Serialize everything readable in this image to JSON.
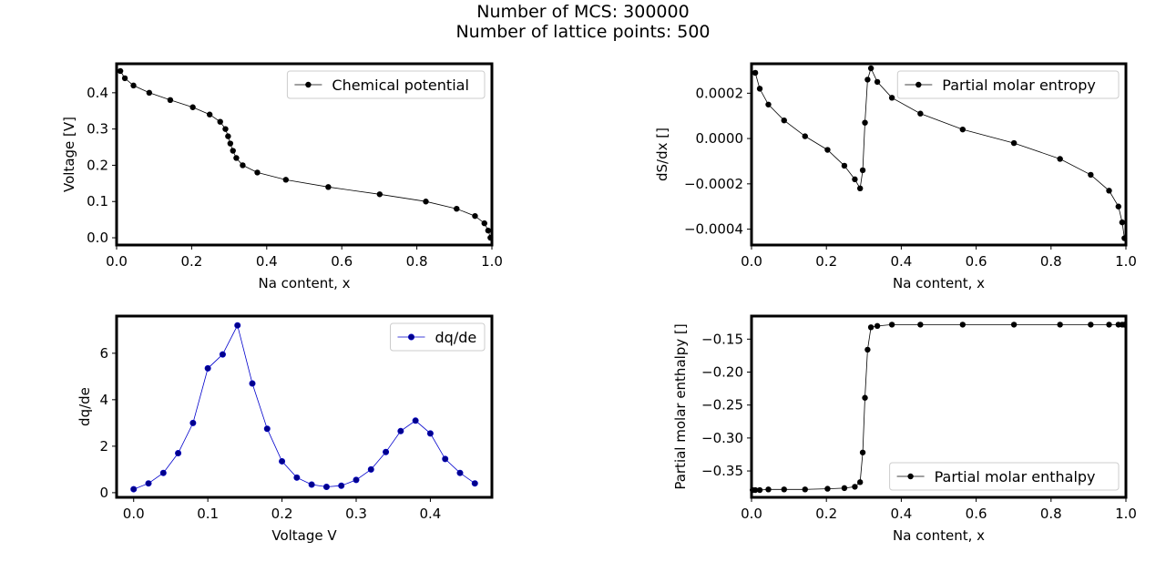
{
  "figure": {
    "title_line1": "Number of MCS: 300000",
    "title_line2": "Number of lattice points: 500"
  },
  "chart_data": [
    {
      "id": "voltage",
      "type": "line",
      "xlabel": "Na content, x",
      "ylabel": "Voltage [V]",
      "xlim": [
        0.0,
        1.0
      ],
      "ylim": [
        -0.02,
        0.48
      ],
      "xticks": [
        "0.0",
        "0.2",
        "0.4",
        "0.6",
        "0.8",
        "1.0"
      ],
      "yticks": [
        "0.0",
        "0.1",
        "0.2",
        "0.3",
        "0.4"
      ],
      "grid": false,
      "legend_position": "upper right",
      "series": [
        {
          "name": "Chemical potential",
          "color": "#000000",
          "x": [
            0.01,
            0.022,
            0.045,
            0.087,
            0.143,
            0.203,
            0.248,
            0.276,
            0.29,
            0.297,
            0.303,
            0.31,
            0.319,
            0.336,
            0.375,
            0.451,
            0.564,
            0.701,
            0.824,
            0.906,
            0.955,
            0.98,
            0.99,
            0.996
          ],
          "y": [
            0.46,
            0.44,
            0.42,
            0.4,
            0.38,
            0.36,
            0.34,
            0.32,
            0.3,
            0.28,
            0.26,
            0.24,
            0.22,
            0.2,
            0.18,
            0.16,
            0.14,
            0.12,
            0.1,
            0.08,
            0.06,
            0.04,
            0.02,
            0.0
          ]
        }
      ]
    },
    {
      "id": "entropy",
      "type": "line",
      "xlabel": "Na content, x",
      "ylabel": "dS/dx []",
      "xlim": [
        0.0,
        1.0
      ],
      "ylim": [
        -0.00047,
        0.00033
      ],
      "xticks": [
        "0.0",
        "0.2",
        "0.4",
        "0.6",
        "0.8",
        "1.0"
      ],
      "yticks": [
        "−0.0004",
        "−0.0002",
        "0.0000",
        "0.0002"
      ],
      "grid": false,
      "legend_position": "upper right",
      "series": [
        {
          "name": "Partial molar entropy",
          "color": "#000000",
          "x": [
            0.01,
            0.022,
            0.045,
            0.087,
            0.143,
            0.203,
            0.248,
            0.276,
            0.29,
            0.297,
            0.303,
            0.31,
            0.319,
            0.336,
            0.375,
            0.451,
            0.564,
            0.701,
            0.824,
            0.906,
            0.955,
            0.98,
            0.99,
            0.996
          ],
          "y": [
            0.00029,
            0.00022,
            0.00015,
            8e-05,
            1e-05,
            -5e-05,
            -0.00012,
            -0.00018,
            -0.00022,
            -0.00014,
            7e-05,
            0.00026,
            0.00031,
            0.00025,
            0.00018,
            0.00011,
            4e-05,
            -2e-05,
            -9e-05,
            -0.00016,
            -0.00023,
            -0.0003,
            -0.00037,
            -0.00044
          ]
        }
      ]
    },
    {
      "id": "dqde",
      "type": "line",
      "xlabel": "Voltage V",
      "ylabel": "dq/de",
      "xlim": [
        -0.023,
        0.483
      ],
      "ylim": [
        -0.2,
        7.6
      ],
      "xticks": [
        "0.0",
        "0.1",
        "0.2",
        "0.3",
        "0.4"
      ],
      "yticks": [
        "0",
        "2",
        "4",
        "6"
      ],
      "grid": false,
      "legend_position": "upper right",
      "series": [
        {
          "name": "dq/de",
          "color": "#0000cc",
          "marker_fill": "#00008b",
          "x": [
            0.0,
            0.02,
            0.04,
            0.06,
            0.08,
            0.1,
            0.12,
            0.14,
            0.16,
            0.18,
            0.2,
            0.22,
            0.24,
            0.26,
            0.28,
            0.3,
            0.32,
            0.34,
            0.36,
            0.38,
            0.4,
            0.42,
            0.44,
            0.46
          ],
          "y": [
            0.15,
            0.4,
            0.85,
            1.7,
            3.0,
            5.35,
            5.95,
            7.2,
            4.7,
            2.75,
            1.35,
            0.65,
            0.35,
            0.25,
            0.3,
            0.55,
            1.0,
            1.75,
            2.65,
            3.1,
            2.55,
            1.45,
            0.85,
            0.4
          ]
        }
      ]
    },
    {
      "id": "enthalpy",
      "type": "line",
      "xlabel": "Na content, x",
      "ylabel": "Partial molar enthalpy []",
      "xlim": [
        0.0,
        1.0
      ],
      "ylim": [
        -0.39,
        -0.115
      ],
      "xticks": [
        "0.0",
        "0.2",
        "0.4",
        "0.6",
        "0.8",
        "1.0"
      ],
      "yticks": [
        "−0.35",
        "−0.30",
        "−0.25",
        "−0.20",
        "−0.15"
      ],
      "grid": false,
      "legend_position": "lower right",
      "series": [
        {
          "name": "Partial molar enthalpy",
          "color": "#000000",
          "x": [
            0.003,
            0.01,
            0.022,
            0.045,
            0.087,
            0.143,
            0.203,
            0.248,
            0.276,
            0.29,
            0.297,
            0.303,
            0.31,
            0.319,
            0.336,
            0.375,
            0.451,
            0.564,
            0.701,
            0.824,
            0.906,
            0.955,
            0.98,
            0.99,
            0.996
          ],
          "y": [
            -0.379,
            -0.379,
            -0.379,
            -0.378,
            -0.378,
            -0.378,
            -0.377,
            -0.376,
            -0.374,
            -0.367,
            -0.322,
            -0.239,
            -0.166,
            -0.132,
            -0.13,
            -0.128,
            -0.128,
            -0.128,
            -0.128,
            -0.128,
            -0.128,
            -0.128,
            -0.128,
            -0.128,
            -0.128
          ]
        }
      ]
    }
  ]
}
